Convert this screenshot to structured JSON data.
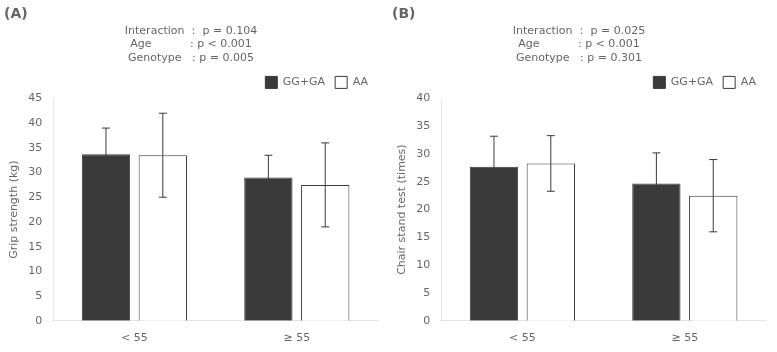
{
  "chart_data": [
    {
      "type": "bar",
      "title": "(A)",
      "annotations": [
        "Interaction ： p = 0.104",
        "Age           : p < 0.001",
        "Genotype   : p = 0.005"
      ],
      "ylabel": "Grip strength (kg)",
      "categories": [
        "< 55",
        "≥ 55"
      ],
      "series": [
        {
          "name": "GG+GA",
          "color": "#3a3a3a",
          "values": [
            33.7,
            29.0
          ],
          "errors": [
            5.3,
            4.5
          ]
        },
        {
          "name": "AA",
          "color": "#ffffff",
          "values": [
            33.5,
            27.5
          ],
          "errors": [
            8.5,
            8.5
          ]
        }
      ],
      "ylim": [
        0,
        45
      ],
      "yticks": [
        0,
        5,
        10,
        15,
        20,
        25,
        30,
        35,
        40,
        45
      ],
      "grid": false,
      "legend": "upper right"
    },
    {
      "type": "bar",
      "title": "(B)",
      "annotations": [
        "Interaction ： p = 0.025",
        "Age           : p < 0.001",
        "Genotype   : p = 0.301"
      ],
      "ylabel": "Chair stand test (times)",
      "categories": [
        "< 55",
        "≥ 55"
      ],
      "series": [
        {
          "name": "GG+GA",
          "color": "#3a3a3a",
          "values": [
            27.7,
            24.7
          ],
          "errors": [
            5.5,
            5.5
          ]
        },
        {
          "name": "AA",
          "color": "#ffffff",
          "values": [
            28.3,
            22.5
          ],
          "errors": [
            5.0,
            6.5
          ]
        }
      ],
      "ylim": [
        0,
        40
      ],
      "yticks": [
        0,
        5,
        10,
        15,
        20,
        25,
        30,
        35,
        40
      ],
      "grid": false,
      "legend": "upper right"
    }
  ]
}
